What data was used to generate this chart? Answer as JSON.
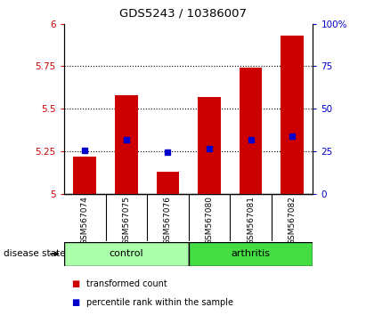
{
  "title": "GDS5243 / 10386007",
  "samples": [
    "GSM567074",
    "GSM567075",
    "GSM567076",
    "GSM567080",
    "GSM567081",
    "GSM567082"
  ],
  "red_values": [
    5.22,
    5.58,
    5.13,
    5.57,
    5.74,
    5.93
  ],
  "blue_values": [
    5.255,
    5.32,
    5.245,
    5.265,
    5.315,
    5.34
  ],
  "ylim": [
    5.0,
    6.0
  ],
  "yticks": [
    5.0,
    5.25,
    5.5,
    5.75,
    6.0
  ],
  "ytick_labels": [
    "5",
    "5.25",
    "5.5",
    "5.75",
    "6"
  ],
  "y2ticks": [
    0,
    25,
    50,
    75,
    100
  ],
  "y2tick_labels": [
    "0",
    "25",
    "50",
    "75",
    "100%"
  ],
  "bar_color": "#CC0000",
  "dot_color": "#0000CC",
  "bg_color": "#C0C0C0",
  "plot_bg": "#FFFFFF",
  "label_color_red": "#CC0000",
  "label_color_blue": "#0000CC",
  "ctrl_color": "#AAFFAA",
  "arth_color": "#44DD44",
  "disease_state_label": "disease state",
  "legend_red": "transformed count",
  "legend_blue": "percentile rank within the sample",
  "grid_dotted_vals": [
    5.25,
    5.5,
    5.75
  ]
}
